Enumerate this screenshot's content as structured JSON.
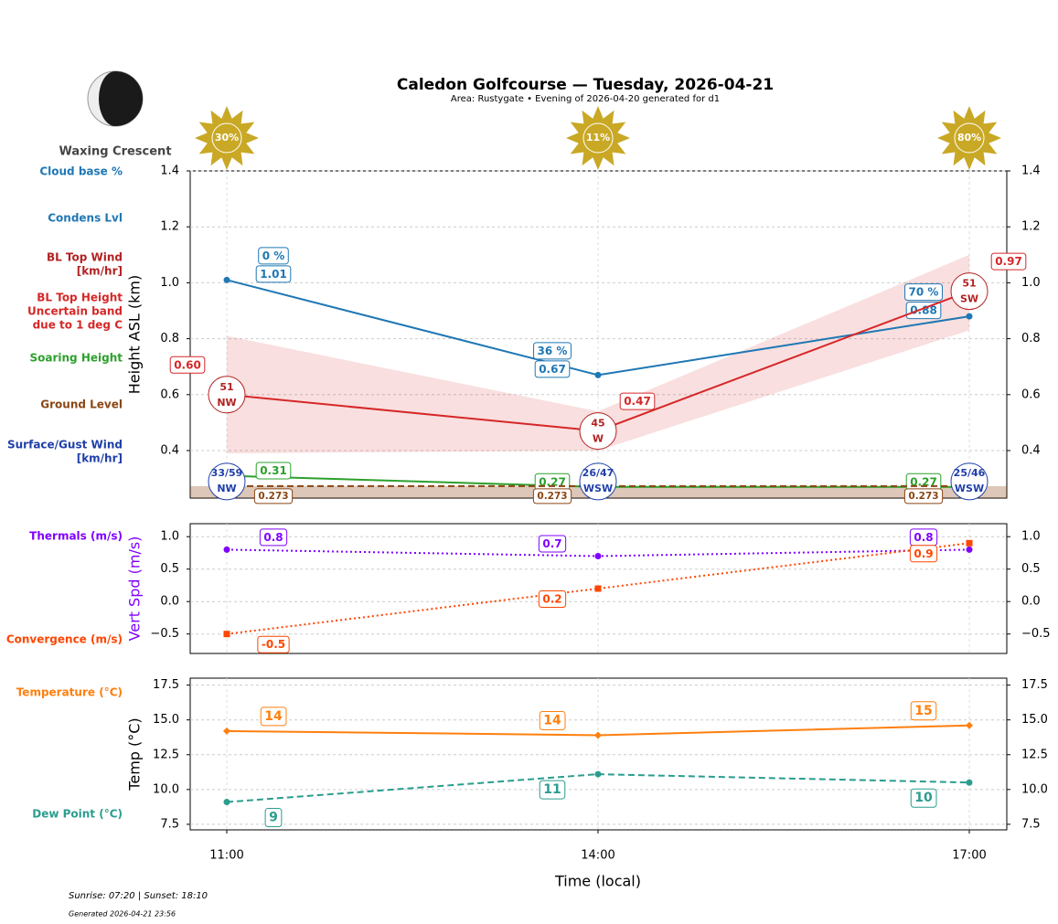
{
  "page": {
    "title": "Caledon Golfcourse — Tuesday, 2026-04-21",
    "subtitle": "Area: Rustygate • Evening of 2026-04-20 generated for d1",
    "moon_phase": "Waxing Crescent",
    "sun_times": "Sunrise: 07:20 | Sunset: 18:10",
    "generated": "Generated 2026-04-21 23:56",
    "x_label": "Time (local)"
  },
  "chart_data": [
    {
      "type": "line",
      "y_label": "Height ASL (km)",
      "y_label_color": "#000000",
      "ylim": [
        0.23,
        1.4
      ],
      "yticks": [
        {
          "value": 0.4,
          "label": "0.4"
        },
        0.6,
        0.8,
        {
          "value": 1.0,
          "label": "1.0"
        },
        1.2,
        1.4
      ],
      "grid": true,
      "sky_cover": {
        "color": "#c9a825",
        "values": [
          30,
          11,
          80
        ],
        "value_labels": [
          "30%",
          "11%",
          "80%"
        ]
      },
      "series": [
        {
          "name": "Cloud base %",
          "kind": "tag",
          "color": "#1f77b4",
          "values": [
            0,
            36,
            70
          ],
          "value_labels": [
            "0 %",
            "36 %",
            "70 %"
          ]
        },
        {
          "name": "Condens Lvl",
          "kind": "line",
          "color": "#1f77b4",
          "line_style": "solid",
          "marker": "circle",
          "values": [
            1.01,
            0.67,
            0.88
          ]
        },
        {
          "name": [
            "BL Top Wind",
            "[km/hr]"
          ],
          "kind": "wind",
          "color": "#b22222",
          "values": [
            51,
            45,
            51
          ],
          "directions": [
            "NW",
            "W",
            "SW"
          ]
        },
        {
          "name": [
            "BL Top Height",
            "Uncertain band",
            "due to 1 deg C"
          ],
          "kind": "line",
          "color": "#d62728",
          "line_style": "solid",
          "marker": null,
          "values": [
            0.6,
            0.47,
            0.97
          ],
          "value_labels": [
            "0.60",
            "0.47",
            "0.97"
          ],
          "lower": [
            0.39,
            0.4,
            0.83
          ],
          "upper": [
            0.81,
            0.54,
            1.1
          ]
        },
        {
          "name": "Soaring Height",
          "kind": "line",
          "color": "#2ca02c",
          "line_style": "solid",
          "marker": null,
          "values": [
            0.31,
            0.27,
            0.27
          ]
        },
        {
          "name": "Ground Level",
          "kind": "line",
          "color": "#8b4513",
          "line_style": "dashed",
          "marker": null,
          "fill_below": true,
          "values": [
            0.273,
            0.273,
            0.273
          ]
        },
        {
          "name": [
            "Surface/Gust Wind",
            "[km/hr]"
          ],
          "kind": "surface_wind",
          "color": "#1f3fa8",
          "values": [
            33,
            26,
            25
          ],
          "gust": [
            59,
            47,
            46
          ],
          "value_labels": [
            "33/59",
            "26/47",
            "25/46"
          ],
          "directions": [
            "NW",
            "WSW",
            "WSW"
          ]
        }
      ]
    },
    {
      "type": "line",
      "y_label": "Vert Spd (m/s)",
      "y_label_color": "#7f00ff",
      "ylim": [
        -0.8,
        1.2
      ],
      "yticks": [
        {
          "value": -0.5,
          "label": "−0.5"
        },
        {
          "value": 0.0,
          "label": "0.0"
        },
        0.5,
        {
          "value": 1.0,
          "label": "1.0"
        }
      ],
      "grid": true,
      "series": [
        {
          "name": "Thermals (m/s)",
          "kind": "line",
          "color": "#7f00ff",
          "line_style": "dotted",
          "marker": "circle",
          "values": [
            0.8,
            0.7,
            0.8
          ]
        },
        {
          "name": "Convergence (m/s)",
          "kind": "line",
          "color": "#ff4500",
          "line_style": "dotted",
          "marker": "square",
          "values": [
            -0.5,
            0.2,
            0.9
          ]
        }
      ]
    },
    {
      "type": "line",
      "y_label": "Temp (°C)",
      "y_label_color": "#000000",
      "categories": [
        "11:00",
        "14:00",
        "17:00"
      ],
      "ylim": [
        7.1,
        18.0
      ],
      "yticks": [
        7.5,
        {
          "value": 10.0,
          "label": "10.0"
        },
        12.5,
        {
          "value": 15.0,
          "label": "15.0"
        },
        17.5
      ],
      "grid": true,
      "series": [
        {
          "name": "Temperature (°C)",
          "kind": "line",
          "color": "#ff7f0e",
          "line_style": "solid",
          "marker": "diamond",
          "values": [
            14.2,
            13.9,
            14.6
          ],
          "value_labels": [
            "14",
            "14",
            "15"
          ]
        },
        {
          "name": "Dew Point (°C)",
          "kind": "line",
          "color": "#2a9d8f",
          "line_style": "dashed",
          "marker": "circle",
          "values": [
            9.1,
            11.1,
            10.5
          ],
          "value_labels": [
            "9",
            "11",
            "10"
          ]
        }
      ]
    }
  ]
}
